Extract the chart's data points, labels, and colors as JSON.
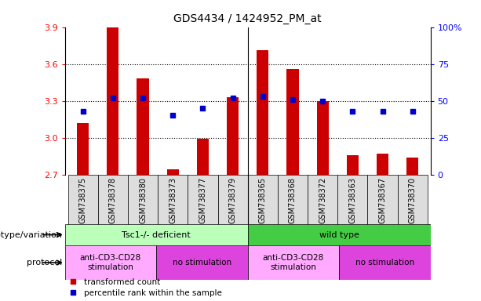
{
  "title": "GDS4434 / 1424952_PM_at",
  "samples": [
    "GSM738375",
    "GSM738378",
    "GSM738380",
    "GSM738373",
    "GSM738377",
    "GSM738379",
    "GSM738365",
    "GSM738368",
    "GSM738372",
    "GSM738363",
    "GSM738367",
    "GSM738370"
  ],
  "bar_values": [
    3.12,
    3.9,
    3.48,
    2.74,
    2.99,
    3.33,
    3.71,
    3.56,
    3.3,
    2.86,
    2.87,
    2.84
  ],
  "dot_percentiles": [
    43,
    52,
    52,
    40,
    45,
    52,
    53,
    51,
    50,
    43,
    43,
    43
  ],
  "bar_color": "#cc0000",
  "dot_color": "#0000cc",
  "ylim_left": [
    2.7,
    3.9
  ],
  "ylim_right": [
    0,
    100
  ],
  "yticks_left": [
    2.7,
    3.0,
    3.3,
    3.6,
    3.9
  ],
  "yticks_right": [
    0,
    25,
    50,
    75,
    100
  ],
  "ytick_right_labels": [
    "0",
    "25",
    "50",
    "75",
    "100%"
  ],
  "hlines": [
    3.0,
    3.3,
    3.6
  ],
  "bar_bottom": 2.7,
  "bar_width": 0.4,
  "genotype_groups": [
    {
      "label": "Tsc1-/- deficient",
      "start": 0,
      "end": 6,
      "color": "#bbffbb"
    },
    {
      "label": "wild type",
      "start": 6,
      "end": 12,
      "color": "#44cc44"
    }
  ],
  "protocol_groups": [
    {
      "label": "anti-CD3-CD28\nstimulation",
      "start": 0,
      "end": 3,
      "color": "#ffaaff"
    },
    {
      "label": "no stimulation",
      "start": 3,
      "end": 6,
      "color": "#dd44dd"
    },
    {
      "label": "anti-CD3-CD28\nstimulation",
      "start": 6,
      "end": 9,
      "color": "#ffaaff"
    },
    {
      "label": "no stimulation",
      "start": 9,
      "end": 12,
      "color": "#dd44dd"
    }
  ],
  "legend_bar_label": "transformed count",
  "legend_dot_label": "percentile rank within the sample",
  "genotype_row_label": "genotype/variation",
  "protocol_row_label": "protocol",
  "sample_bg_color": "#dddddd",
  "tick_gray_color": "#888888"
}
